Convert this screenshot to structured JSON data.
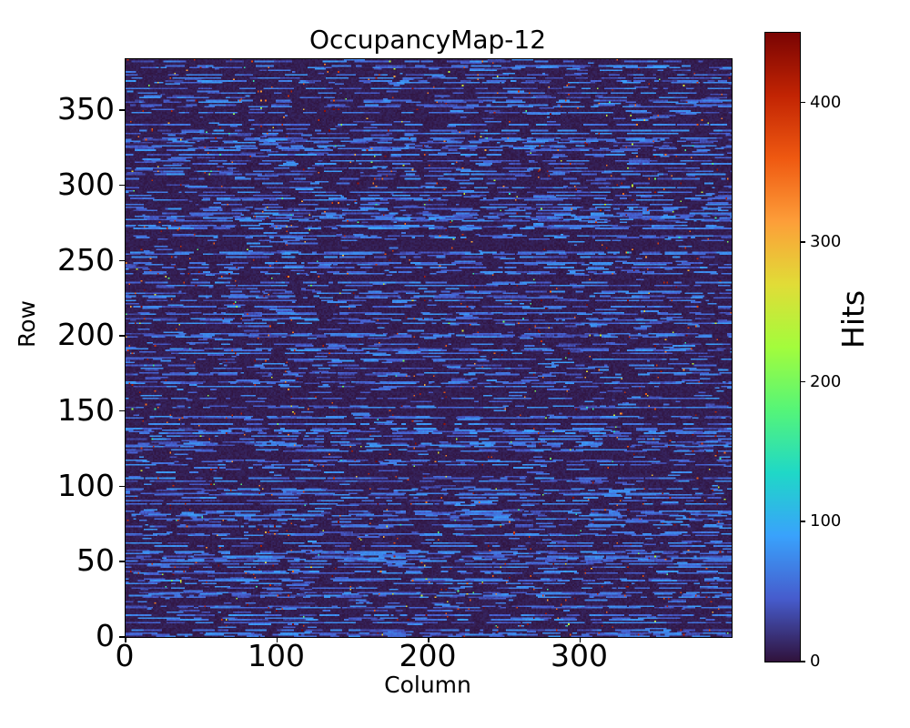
{
  "chart_data": {
    "type": "heatmap",
    "title": "OccupancyMap-12",
    "xlabel": "Column",
    "ylabel": "Row",
    "colorbar_label": "Hits",
    "ncols": 400,
    "nrows": 384,
    "xlim": [
      0,
      400
    ],
    "ylim": [
      0,
      384
    ],
    "vmin": 0,
    "vmax": 450,
    "x_ticks": [
      0,
      100,
      200,
      300
    ],
    "y_ticks": [
      0,
      50,
      100,
      150,
      200,
      250,
      300,
      350
    ],
    "colorbar_ticks": [
      0,
      100,
      200,
      300,
      400
    ],
    "grid": false,
    "legend": "none (colorbar on right)",
    "colormap": "turbo",
    "colormap_stops": [
      [
        0.0,
        "#30123b"
      ],
      [
        0.1,
        "#465ccd"
      ],
      [
        0.2,
        "#39a2fc"
      ],
      [
        0.3,
        "#1fd8c7"
      ],
      [
        0.4,
        "#55f578"
      ],
      [
        0.5,
        "#a3fc3c"
      ],
      [
        0.6,
        "#e1dc37"
      ],
      [
        0.7,
        "#fd9e39"
      ],
      [
        0.8,
        "#ef5911"
      ],
      [
        0.9,
        "#c22403"
      ],
      [
        1.0,
        "#7a0403"
      ]
    ],
    "pattern": {
      "description": "Sparse random pixel-hit occupancy map: dark low-count background (values ~2-12) with horizontal dash runs of moderate hit counts (~30-85) on roughly a third of the rows, plus rare isolated hot pixels up to ~455 hits (red/orange specks) and occasional mid-value green/cyan pixels.",
      "seed": 12,
      "background_value_range": [
        2,
        12
      ],
      "dash_value_range": [
        30,
        85
      ],
      "dash_length_range": [
        2,
        16
      ],
      "active_row_fraction": 0.38,
      "active_row_dash_density": [
        0.35,
        0.6
      ],
      "quiet_row_dash_density": [
        0.01,
        0.08
      ],
      "hot_pixel_count": 620,
      "hot_value_range": [
        330,
        455
      ],
      "mid_value_pixel_count": 260,
      "mid_value_range": [
        140,
        330
      ]
    },
    "colors": {
      "figure_background": "#ffffff",
      "axes_outline": "#000000",
      "text": "#000000"
    }
  }
}
